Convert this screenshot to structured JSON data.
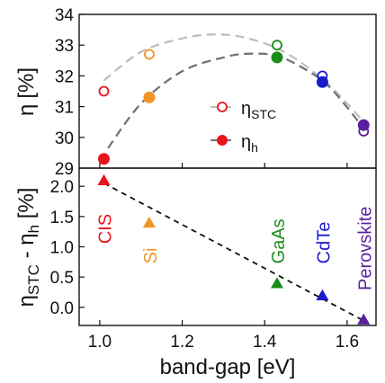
{
  "chart_data": [
    {
      "type": "scatter",
      "panel": "top",
      "ylabel_main": "η",
      "ylabel_unit": "[%]",
      "ylim": [
        29,
        34
      ],
      "yticks": [
        "29",
        "30",
        "31",
        "32",
        "33",
        "34"
      ],
      "xlim": [
        0.95,
        1.67
      ],
      "grid": false,
      "legend_position": "center-right",
      "series": [
        {
          "name_main": "η",
          "name_sub": "STC",
          "marker": "open-circle",
          "points": [
            {
              "x": 1.01,
              "y": 31.5,
              "color": "#e8141c"
            },
            {
              "x": 1.12,
              "y": 32.7,
              "color": "#f39325"
            },
            {
              "x": 1.43,
              "y": 33.0,
              "color": "#1a8c1a"
            },
            {
              "x": 1.54,
              "y": 32.0,
              "color": "#1a1acc"
            },
            {
              "x": 1.64,
              "y": 30.2,
              "color": "#5b1fa0"
            }
          ]
        },
        {
          "name_main": "η",
          "name_sub": "h",
          "marker": "filled-circle",
          "points": [
            {
              "x": 1.01,
              "y": 29.3,
              "color": "#e8141c"
            },
            {
              "x": 1.12,
              "y": 31.3,
              "color": "#f39325"
            },
            {
              "x": 1.43,
              "y": 32.6,
              "color": "#1a8c1a"
            },
            {
              "x": 1.54,
              "y": 31.8,
              "color": "#1a1acc"
            },
            {
              "x": 1.64,
              "y": 30.4,
              "color": "#5b1fa0"
            }
          ]
        }
      ],
      "fit_curves": [
        {
          "series": "STC",
          "color": "#bdbdbd",
          "points": [
            [
              1.01,
              31.85
            ],
            [
              1.1,
              32.78
            ],
            [
              1.2,
              33.22
            ],
            [
              1.28,
              33.35
            ],
            [
              1.36,
              33.22
            ],
            [
              1.45,
              32.76
            ],
            [
              1.54,
              31.9
            ],
            [
              1.6,
              31.1
            ],
            [
              1.64,
              30.5
            ]
          ]
        },
        {
          "series": "h",
          "color": "#707070",
          "points": [
            [
              1.02,
              29.65
            ],
            [
              1.1,
              31.1
            ],
            [
              1.2,
              32.15
            ],
            [
              1.3,
              32.6
            ],
            [
              1.36,
              32.72
            ],
            [
              1.43,
              32.65
            ],
            [
              1.5,
              32.2
            ],
            [
              1.56,
              31.6
            ],
            [
              1.64,
              30.3
            ]
          ]
        }
      ]
    },
    {
      "type": "scatter",
      "panel": "bottom",
      "ylabel_parts": {
        "a": "η",
        "a_sub": "STC",
        "mid": " - η",
        "b_sub": "h",
        "unit": " [%]"
      },
      "ylim": [
        -0.3,
        2.3
      ],
      "yticks": [
        "0.0",
        "0.5",
        "1.0",
        "1.5",
        "2.0"
      ],
      "xlim": [
        0.95,
        1.67
      ],
      "xticks": [
        "1.0",
        "1.2",
        "1.4",
        "1.6"
      ],
      "xlabel": "band-gap [eV]",
      "grid": false,
      "points": [
        {
          "x": 1.01,
          "y": 2.1,
          "color": "#e8141c",
          "label": "CIS"
        },
        {
          "x": 1.12,
          "y": 1.4,
          "color": "#f39325",
          "label": "Si"
        },
        {
          "x": 1.43,
          "y": 0.4,
          "color": "#1a8c1a",
          "label": "GaAs"
        },
        {
          "x": 1.54,
          "y": 0.2,
          "color": "#1a1acc",
          "label": "CdTe"
        },
        {
          "x": 1.64,
          "y": -0.2,
          "color": "#5b1fa0",
          "label": "Perovskite"
        }
      ],
      "trend_line": {
        "color": "#111111",
        "from": [
          1.01,
          2.05
        ],
        "to": [
          1.64,
          -0.22
        ]
      }
    }
  ]
}
